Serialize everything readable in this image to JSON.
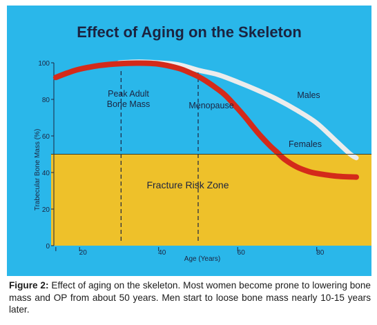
{
  "figure_caption": {
    "label": "Figure 2:",
    "text": "Effect of aging on the skeleton. Most women become prone to lowering bone mass and OP from about 50 years. Men start to loose bone mass nearly 10-15 years later."
  },
  "chart_data": {
    "type": "line",
    "title": "Effect of Aging on the Skeleton",
    "xlabel": "Age (Years)",
    "ylabel": "Trabecular Bone Mass (%)",
    "xlim": [
      13.5,
      90
    ],
    "ylim": [
      0,
      100
    ],
    "x_ticks": [
      20,
      40,
      60,
      80
    ],
    "y_ticks": [
      0,
      20,
      40,
      60,
      80,
      100
    ],
    "grid": false,
    "series": [
      {
        "name": "Males",
        "color": "#ececec",
        "x": [
          30,
          35,
          40,
          45,
          50,
          55,
          60,
          65,
          70,
          75,
          80,
          85,
          88.5,
          90
        ],
        "y": [
          100,
          100.5,
          100,
          99,
          96,
          93.5,
          89.5,
          85,
          80,
          74,
          67,
          57,
          50,
          48
        ]
      },
      {
        "name": "Females",
        "color": "#d42a1a",
        "x": [
          14,
          17,
          20,
          25,
          30,
          35,
          40,
          45,
          48,
          50,
          52,
          55,
          57,
          60,
          62,
          65,
          68,
          70,
          72,
          75,
          78,
          80,
          85,
          90
        ],
        "y": [
          92,
          94.5,
          96.5,
          98.5,
          99.5,
          99.8,
          99.3,
          97,
          94.5,
          92.5,
          90,
          85.5,
          82,
          75,
          70,
          62,
          55,
          51,
          47,
          43,
          40.5,
          39.5,
          38,
          37.5
        ]
      }
    ],
    "reference_lines": [
      {
        "label": "Peak Adult Bone Mass",
        "x": 30.5
      },
      {
        "label": "Menopause",
        "x": 50
      }
    ],
    "zone": {
      "label": "Fracture Risk Zone",
      "y_from": 0,
      "y_to": 50,
      "color": "#eec12a"
    },
    "colors": {
      "background": "#2ab7ea",
      "zone": "#eec12a",
      "males": "#ececec",
      "females": "#d42a1a"
    }
  }
}
